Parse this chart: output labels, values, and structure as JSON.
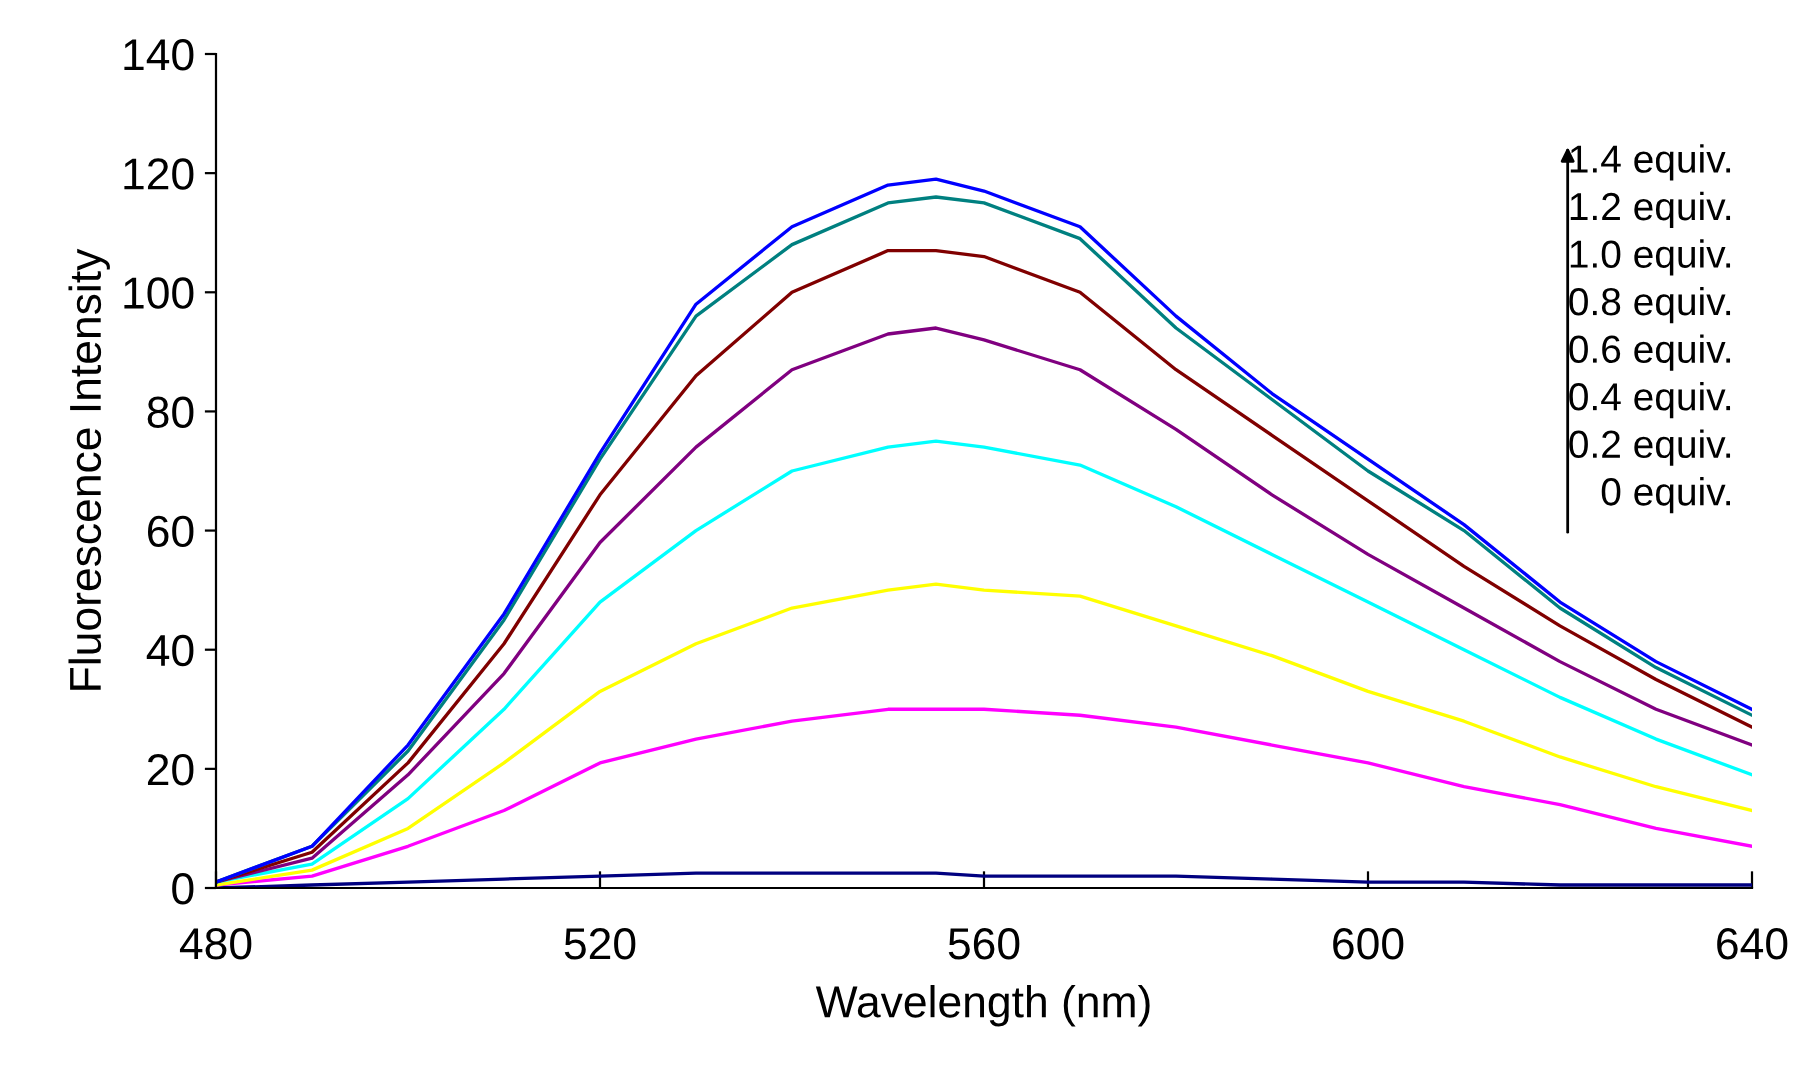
{
  "chart_data": {
    "type": "line",
    "xlabel": "Wavelength (nm)",
    "ylabel": "Fluorescence Intensity",
    "xlim": [
      480,
      640
    ],
    "ylim": [
      0,
      140
    ],
    "xticks": [
      480,
      520,
      560,
      600,
      640
    ],
    "yticks": [
      0,
      20,
      40,
      60,
      80,
      100,
      120,
      140
    ],
    "grid": false,
    "legend": false,
    "marker": "none",
    "line_style": "solid",
    "x": [
      480,
      490,
      500,
      510,
      520,
      530,
      540,
      550,
      555,
      560,
      570,
      580,
      590,
      600,
      610,
      620,
      630,
      640
    ],
    "series": [
      {
        "color": "#000080",
        "values": [
          0,
          0.5,
          1,
          1.5,
          2,
          2.5,
          2.5,
          2.5,
          2.5,
          2,
          2,
          2,
          1.5,
          1,
          1,
          0.5,
          0.5,
          0.5
        ]
      },
      {
        "color": "#ff00ff",
        "values": [
          0.5,
          2,
          7,
          13,
          21,
          25,
          28,
          30,
          30,
          30,
          29,
          27,
          24,
          21,
          17,
          14,
          10,
          7
        ]
      },
      {
        "color": "#ffff00",
        "values": [
          0.5,
          3,
          10,
          21,
          33,
          41,
          47,
          50,
          51,
          50,
          49,
          44,
          39,
          33,
          28,
          22,
          17,
          13
        ]
      },
      {
        "color": "#00ffff",
        "values": [
          1,
          4,
          15,
          30,
          48,
          60,
          70,
          74,
          75,
          74,
          71,
          64,
          56,
          48,
          40,
          32,
          25,
          19
        ]
      },
      {
        "color": "#800080",
        "values": [
          1,
          5,
          19,
          36,
          58,
          74,
          87,
          93,
          94,
          92,
          87,
          77,
          66,
          56,
          47,
          38,
          30,
          24
        ]
      },
      {
        "color": "#800000",
        "values": [
          1,
          6,
          21,
          41,
          66,
          86,
          100,
          107,
          107,
          106,
          100,
          87,
          76,
          65,
          54,
          44,
          35,
          27
        ]
      },
      {
        "color": "#008080",
        "values": [
          1,
          7,
          23,
          45,
          72,
          96,
          108,
          115,
          116,
          115,
          109,
          94,
          82,
          70,
          60,
          47,
          37,
          29
        ]
      },
      {
        "color": "#0000ff",
        "values": [
          1,
          7,
          24,
          46,
          73,
          98,
          111,
          118,
          119,
          117,
          111,
          96,
          83,
          72,
          61,
          48,
          38,
          30
        ]
      }
    ],
    "annotations": [
      "1.4 equiv.",
      "1.2 equiv.",
      "1.0 equiv.",
      "0.8 equiv.",
      "0.6 equiv.",
      "0.4 equiv.",
      "0.2 equiv.",
      "0 equiv."
    ]
  }
}
